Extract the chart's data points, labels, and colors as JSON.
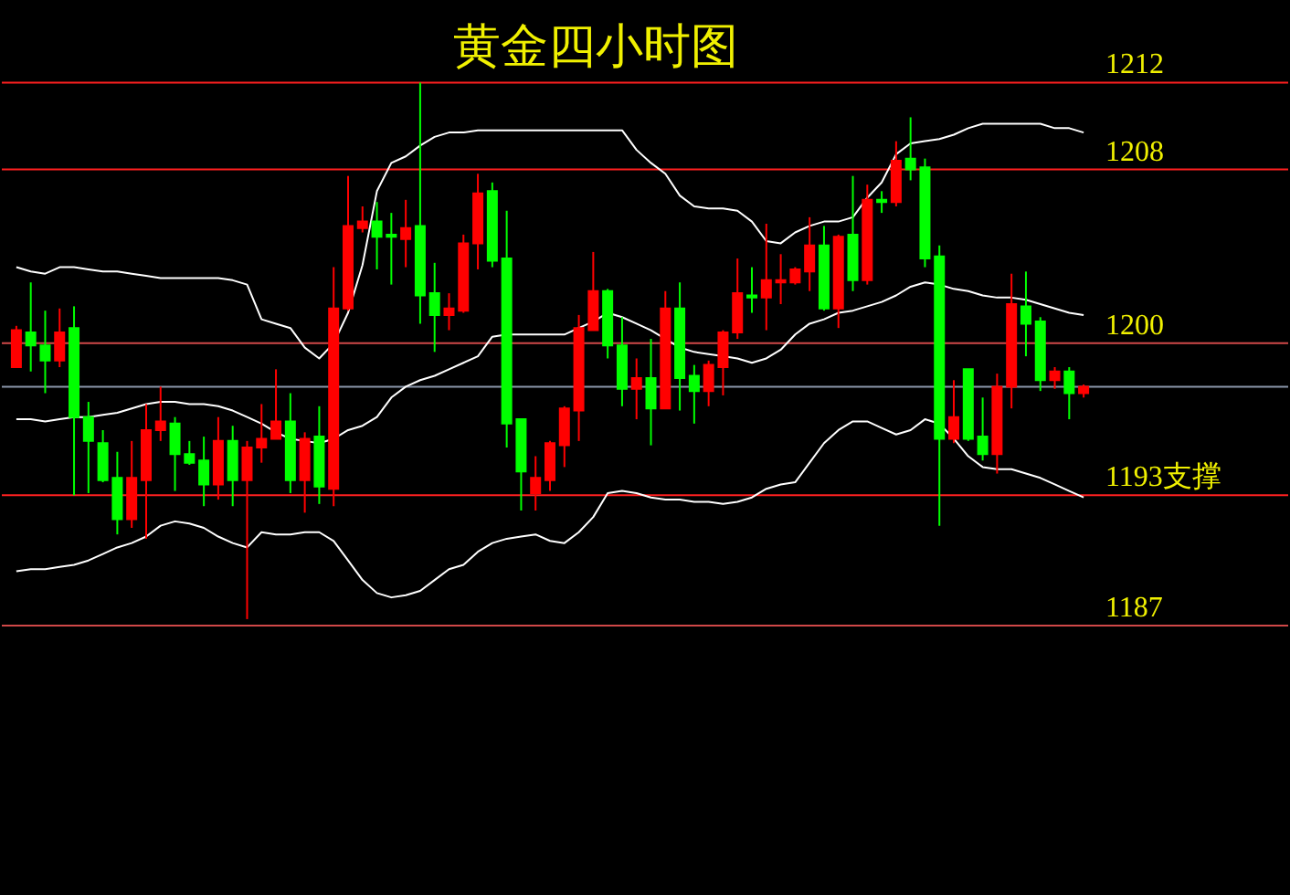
{
  "chart_data": {
    "type": "candlestick",
    "title": "黄金四小时图",
    "categories": [
      null,
      null,
      null,
      null,
      null,
      null,
      null,
      null,
      null,
      null,
      null,
      null,
      null,
      null,
      null,
      null,
      null,
      null,
      null,
      null,
      null,
      null,
      null,
      null,
      null,
      null,
      null,
      null,
      null,
      null,
      null,
      null,
      null,
      null,
      null,
      null,
      null,
      null,
      null,
      null,
      null,
      null,
      null,
      null,
      null,
      null,
      null,
      null,
      null,
      null,
      null,
      null,
      null,
      null,
      null,
      null,
      null,
      null,
      null,
      null,
      null,
      null,
      null,
      null,
      null,
      null,
      null,
      null,
      null,
      null,
      null,
      null,
      null,
      null,
      null
    ],
    "ohlc": [
      [
        1198.9,
        1200.8,
        1198.9,
        1200.6
      ],
      [
        1200.5,
        1202.8,
        1198.7,
        1199.9
      ],
      [
        1199.9,
        1201.5,
        1197.7,
        1199.2
      ],
      [
        1199.2,
        1201.6,
        1198.9,
        1200.5
      ],
      [
        1200.7,
        1201.7,
        1193.0,
        1196.6
      ],
      [
        1196.6,
        1197.3,
        1193.1,
        1195.5
      ],
      [
        1195.4,
        1196.0,
        1193.6,
        1193.7
      ],
      [
        1193.8,
        1195.0,
        1191.2,
        1191.9
      ],
      [
        1191.9,
        1195.5,
        1191.5,
        1193.8
      ],
      [
        1193.7,
        1197.2,
        1191.0,
        1196.0
      ],
      [
        1196.0,
        1198.0,
        1195.5,
        1196.4
      ],
      [
        1196.3,
        1196.6,
        1193.2,
        1194.9
      ],
      [
        1194.9,
        1195.5,
        1194.4,
        1194.5
      ],
      [
        1194.6,
        1195.7,
        1192.5,
        1193.5
      ],
      [
        1193.5,
        1196.6,
        1192.8,
        1195.5
      ],
      [
        1195.5,
        1196.2,
        1192.5,
        1193.7
      ],
      [
        1193.7,
        1195.5,
        1187.3,
        1195.2
      ],
      [
        1195.2,
        1197.2,
        1194.5,
        1195.6
      ],
      [
        1195.6,
        1198.8,
        1195.6,
        1196.4
      ],
      [
        1196.4,
        1197.7,
        1193.1,
        1193.7
      ],
      [
        1193.7,
        1195.9,
        1192.2,
        1195.6
      ],
      [
        1195.7,
        1197.1,
        1192.6,
        1193.4
      ],
      [
        1193.3,
        1203.5,
        1192.5,
        1201.6
      ],
      [
        1201.6,
        1207.7,
        1201.5,
        1205.4
      ],
      [
        1205.3,
        1206.3,
        1205.1,
        1205.6
      ],
      [
        1205.6,
        1206.5,
        1203.4,
        1204.9
      ],
      [
        1205.0,
        1206.0,
        1202.7,
        1204.9
      ],
      [
        1204.8,
        1206.6,
        1203.5,
        1205.3
      ],
      [
        1205.4,
        1212.0,
        1200.9,
        1202.2
      ],
      [
        1202.3,
        1203.7,
        1199.6,
        1201.3
      ],
      [
        1201.3,
        1202.3,
        1200.6,
        1201.6
      ],
      [
        1201.5,
        1205.0,
        1201.4,
        1204.6
      ],
      [
        1204.6,
        1207.8,
        1203.4,
        1206.9
      ],
      [
        1207.0,
        1207.4,
        1203.5,
        1203.8
      ],
      [
        1203.9,
        1206.1,
        1195.2,
        1196.3
      ],
      [
        1196.5,
        1196.5,
        1192.3,
        1194.1
      ],
      [
        1193.1,
        1194.8,
        1192.3,
        1193.8
      ],
      [
        1193.7,
        1195.5,
        1193.2,
        1195.4
      ],
      [
        1195.3,
        1197.1,
        1194.3,
        1197.0
      ],
      [
        1196.9,
        1201.3,
        1195.5,
        1200.7
      ],
      [
        1200.6,
        1204.2,
        1200.6,
        1202.4
      ],
      [
        1202.4,
        1202.5,
        1199.3,
        1199.9
      ],
      [
        1199.9,
        1201.2,
        1197.1,
        1197.9
      ],
      [
        1197.9,
        1199.3,
        1196.5,
        1198.4
      ],
      [
        1198.4,
        1200.2,
        1195.3,
        1197.0
      ],
      [
        1197.0,
        1202.4,
        1197.0,
        1201.6
      ],
      [
        1201.6,
        1202.8,
        1196.9,
        1198.4
      ],
      [
        1198.5,
        1199.0,
        1196.3,
        1197.8
      ],
      [
        1197.8,
        1199.2,
        1197.1,
        1199.0
      ],
      [
        1198.9,
        1200.6,
        1197.6,
        1200.5
      ],
      [
        1200.5,
        1203.9,
        1200.2,
        1202.3
      ],
      [
        1202.2,
        1203.5,
        1201.4,
        1202.1
      ],
      [
        1202.1,
        1205.5,
        1200.6,
        1202.9
      ],
      [
        1202.8,
        1204.1,
        1201.8,
        1202.9
      ],
      [
        1202.8,
        1203.5,
        1202.7,
        1203.4
      ],
      [
        1203.3,
        1205.8,
        1202.4,
        1204.5
      ],
      [
        1204.5,
        1205.4,
        1201.5,
        1201.6
      ],
      [
        1201.6,
        1205.0,
        1200.7,
        1204.9
      ],
      [
        1205.0,
        1207.7,
        1202.4,
        1202.9
      ],
      [
        1202.9,
        1207.3,
        1202.7,
        1206.6
      ],
      [
        1206.6,
        1207.0,
        1206.0,
        1206.5
      ],
      [
        1206.5,
        1209.3,
        1206.3,
        1208.4
      ],
      [
        1208.5,
        1210.4,
        1207.5,
        1208.0
      ],
      [
        1208.1,
        1208.5,
        1203.5,
        1203.9
      ],
      [
        1204.0,
        1204.5,
        1191.6,
        1195.6
      ],
      [
        1195.6,
        1198.3,
        1195.4,
        1196.6
      ],
      [
        1198.8,
        1198.8,
        1195.5,
        1195.6
      ],
      [
        1195.7,
        1197.5,
        1194.6,
        1194.9
      ],
      [
        1194.9,
        1198.6,
        1194.0,
        1198.0
      ],
      [
        1198.0,
        1203.2,
        1197.0,
        1201.8
      ],
      [
        1201.7,
        1203.3,
        1199.4,
        1200.9
      ],
      [
        1201.0,
        1201.2,
        1197.8,
        1198.3
      ],
      [
        1198.3,
        1198.9,
        1197.9,
        1198.7
      ],
      [
        1198.7,
        1198.9,
        1196.5,
        1197.7
      ],
      [
        1197.7,
        1198.1,
        1197.5,
        1198.0
      ]
    ],
    "colors": [
      "#ff0000",
      "#00ff00",
      "#00ff00",
      "#ff0000",
      "#00ff00",
      "#00ff00",
      "#00ff00",
      "#00ff00",
      "#ff0000",
      "#ff0000",
      "#ff0000",
      "#00ff00",
      "#00ff00",
      "#00ff00",
      "#ff0000",
      "#00ff00",
      "#ff0000",
      "#ff0000",
      "#ff0000",
      "#00ff00",
      "#ff0000",
      "#00ff00",
      "#ff0000",
      "#ff0000",
      "#ff0000",
      "#00ff00",
      "#00ff00",
      "#ff0000",
      "#00ff00",
      "#00ff00",
      "#ff0000",
      "#ff0000",
      "#ff0000",
      "#00ff00",
      "#00ff00",
      "#00ff00",
      "#ff0000",
      "#ff0000",
      "#ff0000",
      "#ff0000",
      "#ff0000",
      "#00ff00",
      "#00ff00",
      "#ff0000",
      "#00ff00",
      "#ff0000",
      "#00ff00",
      "#00ff00",
      "#ff0000",
      "#ff0000",
      "#ff0000",
      "#00ff00",
      "#ff0000",
      "#ff0000",
      "#ff0000",
      "#ff0000",
      "#00ff00",
      "#ff0000",
      "#00ff00",
      "#ff0000",
      "#00ff00",
      "#ff0000",
      "#00ff00",
      "#00ff00",
      "#00ff00",
      "#ff0000",
      "#00ff00",
      "#00ff00",
      "#ff0000",
      "#ff0000",
      "#00ff00",
      "#00ff00",
      "#ff0000",
      "#00ff00",
      "#ff0000"
    ],
    "series": [
      {
        "type": "line",
        "color": "#ffffff",
        "values": [
          1203.5,
          1203.3,
          1203.2,
          1203.5,
          1203.5,
          1203.4,
          1203.3,
          1203.3,
          1203.2,
          1203.1,
          1203.0,
          1203.0,
          1203.0,
          1203.0,
          1203.0,
          1202.9,
          1202.7,
          1201.1,
          1200.9,
          1200.7,
          1199.8,
          1199.3,
          1200.0,
          1201.4,
          1203.6,
          1207.0,
          1208.3,
          1208.6,
          1209.1,
          1209.5,
          1209.7,
          1209.7,
          1209.8,
          1209.8,
          1209.8,
          1209.8,
          1209.8,
          1209.8,
          1209.8,
          1209.8,
          1209.8,
          1209.8,
          1209.8,
          1208.9,
          1208.3,
          1207.8,
          1206.8,
          1206.3,
          1206.2,
          1206.2,
          1206.1,
          1205.6,
          1204.7,
          1204.6,
          1205.1,
          1205.4,
          1205.6,
          1205.6,
          1205.8,
          1206.7,
          1207.4,
          1208.7,
          1209.2,
          1209.3,
          1209.4,
          1209.6,
          1209.9,
          1210.1,
          1210.1,
          1210.1,
          1210.1,
          1210.1,
          1209.9,
          1209.9,
          1209.7
        ]
      },
      {
        "type": "line",
        "color": "#ffffff",
        "values": [
          1196.5,
          1196.5,
          1196.4,
          1196.5,
          1196.6,
          1196.6,
          1196.7,
          1196.8,
          1197.0,
          1197.2,
          1197.3,
          1197.3,
          1197.2,
          1197.2,
          1197.1,
          1196.9,
          1196.6,
          1196.3,
          1195.9,
          1195.6,
          1195.5,
          1195.4,
          1195.6,
          1196.0,
          1196.2,
          1196.6,
          1197.5,
          1198.0,
          1198.3,
          1198.5,
          1198.8,
          1199.1,
          1199.4,
          1200.3,
          1200.4,
          1200.4,
          1200.4,
          1200.4,
          1200.4,
          1200.7,
          1201.0,
          1201.4,
          1201.2,
          1200.9,
          1200.6,
          1200.2,
          1199.8,
          1199.6,
          1199.5,
          1199.4,
          1199.3,
          1199.1,
          1199.3,
          1199.7,
          1200.4,
          1200.9,
          1201.1,
          1201.4,
          1201.5,
          1201.7,
          1201.9,
          1202.2,
          1202.6,
          1202.8,
          1202.7,
          1202.5,
          1202.4,
          1202.2,
          1202.1,
          1202.1,
          1202.0,
          1201.8,
          1201.6,
          1201.4,
          1201.3
        ]
      },
      {
        "type": "line",
        "color": "#ffffff",
        "values": [
          1189.5,
          1189.6,
          1189.6,
          1189.7,
          1189.8,
          1190.0,
          1190.3,
          1190.6,
          1190.8,
          1191.1,
          1191.6,
          1191.8,
          1191.7,
          1191.5,
          1191.1,
          1190.8,
          1190.6,
          1191.3,
          1191.2,
          1191.2,
          1191.3,
          1191.3,
          1190.9,
          1190.0,
          1189.1,
          1188.5,
          1188.3,
          1188.4,
          1188.6,
          1189.1,
          1189.6,
          1189.8,
          1190.4,
          1190.8,
          1191.0,
          1191.1,
          1191.2,
          1190.9,
          1190.8,
          1191.3,
          1192.0,
          1193.1,
          1193.2,
          1193.1,
          1192.9,
          1192.8,
          1192.8,
          1192.7,
          1192.7,
          1192.6,
          1192.7,
          1192.9,
          1193.3,
          1193.5,
          1193.6,
          1194.5,
          1195.4,
          1196.0,
          1196.4,
          1196.4,
          1196.1,
          1195.8,
          1196.0,
          1196.5,
          1196.3,
          1195.6,
          1194.8,
          1194.3,
          1194.2,
          1194.2,
          1194.0,
          1193.8,
          1193.5,
          1193.2,
          1192.9
        ]
      }
    ],
    "ref_lines": [
      {
        "axis": "y",
        "value": 1212,
        "label": "1212",
        "color": "#ff2020"
      },
      {
        "axis": "y",
        "value": 1208,
        "label": "1208",
        "color": "#ff2020"
      },
      {
        "axis": "y",
        "value": 1200,
        "label": "1200",
        "color": "#d04848"
      },
      {
        "axis": "y",
        "value": 1198,
        "color": "#8a96aa"
      },
      {
        "axis": "y",
        "value": 1193,
        "label": "1193支撑",
        "color": "#ff2020"
      },
      {
        "axis": "y",
        "value": 1187,
        "label": "1187",
        "color": "#d04848"
      }
    ],
    "ylim": [
      1174.6,
      1215.8
    ],
    "tick_labels": false
  }
}
